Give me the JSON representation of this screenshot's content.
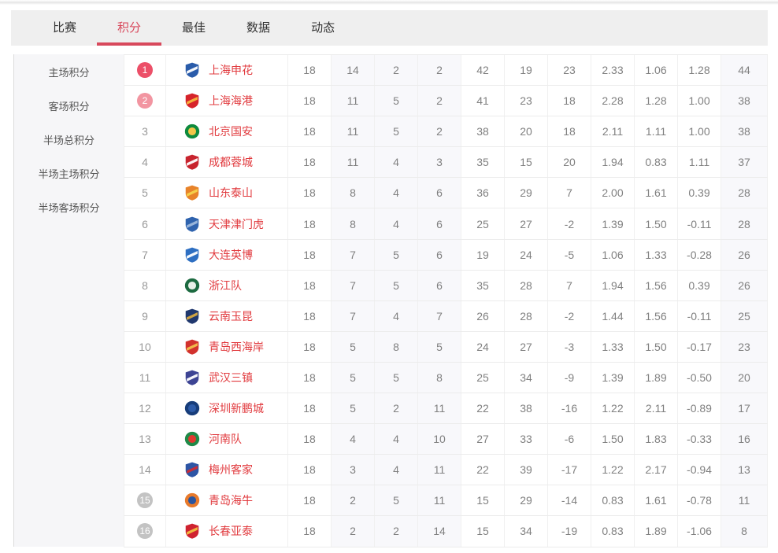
{
  "tabs": {
    "items": [
      {
        "key": "matches",
        "label": "比赛",
        "active": false
      },
      {
        "key": "standings",
        "label": "积分",
        "active": true
      },
      {
        "key": "best",
        "label": "最佳",
        "active": false
      },
      {
        "key": "stats",
        "label": "数据",
        "active": false
      },
      {
        "key": "news",
        "label": "动态",
        "active": false
      }
    ]
  },
  "sidebar": {
    "items": [
      {
        "key": "home-points",
        "label": "主场积分"
      },
      {
        "key": "away-points",
        "label": "客场积分"
      },
      {
        "key": "half-total-points",
        "label": "半场总积分"
      },
      {
        "key": "half-home-points",
        "label": "半场主场积分"
      },
      {
        "key": "half-away-points",
        "label": "半场客场积分"
      }
    ]
  },
  "colors": {
    "accent_red": "#d8495c",
    "badge_rank1": "#ec4f68",
    "badge_rank2": "#f295a1",
    "badge_relegation": "#c3c3c3",
    "team_name_red": "#e13a3e",
    "tabbar_bg": "#efefef",
    "shaded_column_bg": "#f8f8fb"
  },
  "table": {
    "stat_keys": [
      "played",
      "wins",
      "draws",
      "losses",
      "gf",
      "ga",
      "gd",
      "avg_gf",
      "avg_ga",
      "avg_gd",
      "points"
    ],
    "shaded_keys": [
      "wins",
      "draws",
      "losses",
      "points"
    ],
    "rows": [
      {
        "rank": "1",
        "badge": "red",
        "team": "上海申花",
        "logo": {
          "shape": "shield",
          "c1": "#2a5caa",
          "c2": "#ffffff"
        },
        "played": "18",
        "wins": "14",
        "draws": "2",
        "losses": "2",
        "gf": "42",
        "ga": "19",
        "gd": "23",
        "avg_gf": "2.33",
        "avg_ga": "1.06",
        "avg_gd": "1.28",
        "points": "44"
      },
      {
        "rank": "2",
        "badge": "pink",
        "team": "上海海港",
        "logo": {
          "shape": "shield",
          "c1": "#d6232a",
          "c2": "#f5b83d"
        },
        "played": "18",
        "wins": "11",
        "draws": "5",
        "losses": "2",
        "gf": "41",
        "ga": "23",
        "gd": "18",
        "avg_gf": "2.28",
        "avg_ga": "1.28",
        "avg_gd": "1.00",
        "points": "38"
      },
      {
        "rank": "3",
        "badge": null,
        "team": "北京国安",
        "logo": {
          "shape": "circle",
          "c1": "#0e8a3d",
          "c2": "#f3c648"
        },
        "played": "18",
        "wins": "11",
        "draws": "5",
        "losses": "2",
        "gf": "38",
        "ga": "20",
        "gd": "18",
        "avg_gf": "2.11",
        "avg_ga": "1.11",
        "avg_gd": "1.00",
        "points": "38"
      },
      {
        "rank": "4",
        "badge": null,
        "team": "成都蓉城",
        "logo": {
          "shape": "shield",
          "c1": "#c8242e",
          "c2": "#ffffff"
        },
        "played": "18",
        "wins": "11",
        "draws": "4",
        "losses": "3",
        "gf": "35",
        "ga": "15",
        "gd": "20",
        "avg_gf": "1.94",
        "avg_ga": "0.83",
        "avg_gd": "1.11",
        "points": "37"
      },
      {
        "rank": "5",
        "badge": null,
        "team": "山东泰山",
        "logo": {
          "shape": "shield",
          "c1": "#e8832a",
          "c2": "#f6d34b"
        },
        "played": "18",
        "wins": "8",
        "draws": "4",
        "losses": "6",
        "gf": "36",
        "ga": "29",
        "gd": "7",
        "avg_gf": "2.00",
        "avg_ga": "1.61",
        "avg_gd": "0.39",
        "points": "28"
      },
      {
        "rank": "6",
        "badge": null,
        "team": "天津津门虎",
        "logo": {
          "shape": "shield",
          "c1": "#2f63ae",
          "c2": "#9db8dc"
        },
        "played": "18",
        "wins": "8",
        "draws": "4",
        "losses": "6",
        "gf": "25",
        "ga": "27",
        "gd": "-2",
        "avg_gf": "1.39",
        "avg_ga": "1.50",
        "avg_gd": "-0.11",
        "points": "28"
      },
      {
        "rank": "7",
        "badge": null,
        "team": "大连英博",
        "logo": {
          "shape": "shield",
          "c1": "#2e6fc2",
          "c2": "#ffffff"
        },
        "played": "18",
        "wins": "7",
        "draws": "5",
        "losses": "6",
        "gf": "19",
        "ga": "24",
        "gd": "-5",
        "avg_gf": "1.06",
        "avg_ga": "1.33",
        "avg_gd": "-0.28",
        "points": "26"
      },
      {
        "rank": "8",
        "badge": null,
        "team": "浙江队",
        "logo": {
          "shape": "circle",
          "c1": "#1c6a40",
          "c2": "#e8f0e8"
        },
        "played": "18",
        "wins": "7",
        "draws": "5",
        "losses": "6",
        "gf": "35",
        "ga": "28",
        "gd": "7",
        "avg_gf": "1.94",
        "avg_ga": "1.56",
        "avg_gd": "0.39",
        "points": "26"
      },
      {
        "rank": "9",
        "badge": null,
        "team": "云南玉昆",
        "logo": {
          "shape": "shield",
          "c1": "#20386e",
          "c2": "#d9a93f"
        },
        "played": "18",
        "wins": "7",
        "draws": "4",
        "losses": "7",
        "gf": "26",
        "ga": "28",
        "gd": "-2",
        "avg_gf": "1.44",
        "avg_ga": "1.56",
        "avg_gd": "-0.11",
        "points": "25"
      },
      {
        "rank": "10",
        "badge": null,
        "team": "青岛西海岸",
        "logo": {
          "shape": "shield",
          "c1": "#d2322e",
          "c2": "#f1c04c"
        },
        "played": "18",
        "wins": "5",
        "draws": "8",
        "losses": "5",
        "gf": "24",
        "ga": "27",
        "gd": "-3",
        "avg_gf": "1.33",
        "avg_ga": "1.50",
        "avg_gd": "-0.17",
        "points": "23"
      },
      {
        "rank": "11",
        "badge": null,
        "team": "武汉三镇",
        "logo": {
          "shape": "shield",
          "c1": "#3d4494",
          "c2": "#ffffff"
        },
        "played": "18",
        "wins": "5",
        "draws": "5",
        "losses": "8",
        "gf": "25",
        "ga": "34",
        "gd": "-9",
        "avg_gf": "1.39",
        "avg_ga": "1.89",
        "avg_gd": "-0.50",
        "points": "20"
      },
      {
        "rank": "12",
        "badge": null,
        "team": "深圳新鹏城",
        "logo": {
          "shape": "circle",
          "c1": "#173d7a",
          "c2": "#2d5ba8"
        },
        "played": "18",
        "wins": "5",
        "draws": "2",
        "losses": "11",
        "gf": "22",
        "ga": "38",
        "gd": "-16",
        "avg_gf": "1.22",
        "avg_ga": "2.11",
        "avg_gd": "-0.89",
        "points": "17"
      },
      {
        "rank": "13",
        "badge": null,
        "team": "河南队",
        "logo": {
          "shape": "circle",
          "c1": "#1f8a48",
          "c2": "#e0392f"
        },
        "played": "18",
        "wins": "4",
        "draws": "4",
        "losses": "10",
        "gf": "27",
        "ga": "33",
        "gd": "-6",
        "avg_gf": "1.50",
        "avg_ga": "1.83",
        "avg_gd": "-0.33",
        "points": "16"
      },
      {
        "rank": "14",
        "badge": null,
        "team": "梅州客家",
        "logo": {
          "shape": "shield",
          "c1": "#2d55a5",
          "c2": "#cf2b34"
        },
        "played": "18",
        "wins": "3",
        "draws": "4",
        "losses": "11",
        "gf": "22",
        "ga": "39",
        "gd": "-17",
        "avg_gf": "1.22",
        "avg_ga": "2.17",
        "avg_gd": "-0.94",
        "points": "13"
      },
      {
        "rank": "15",
        "badge": "gray",
        "team": "青岛海牛",
        "logo": {
          "shape": "circle",
          "c1": "#e87a2b",
          "c2": "#2a55a0"
        },
        "played": "18",
        "wins": "2",
        "draws": "5",
        "losses": "11",
        "gf": "15",
        "ga": "29",
        "gd": "-14",
        "avg_gf": "0.83",
        "avg_ga": "1.61",
        "avg_gd": "-0.78",
        "points": "11"
      },
      {
        "rank": "16",
        "badge": "gray",
        "team": "长春亚泰",
        "logo": {
          "shape": "shield",
          "c1": "#cf2230",
          "c2": "#f0c040"
        },
        "played": "18",
        "wins": "2",
        "draws": "2",
        "losses": "14",
        "gf": "15",
        "ga": "34",
        "gd": "-19",
        "avg_gf": "0.83",
        "avg_ga": "1.89",
        "avg_gd": "-1.06",
        "points": "8"
      }
    ]
  }
}
